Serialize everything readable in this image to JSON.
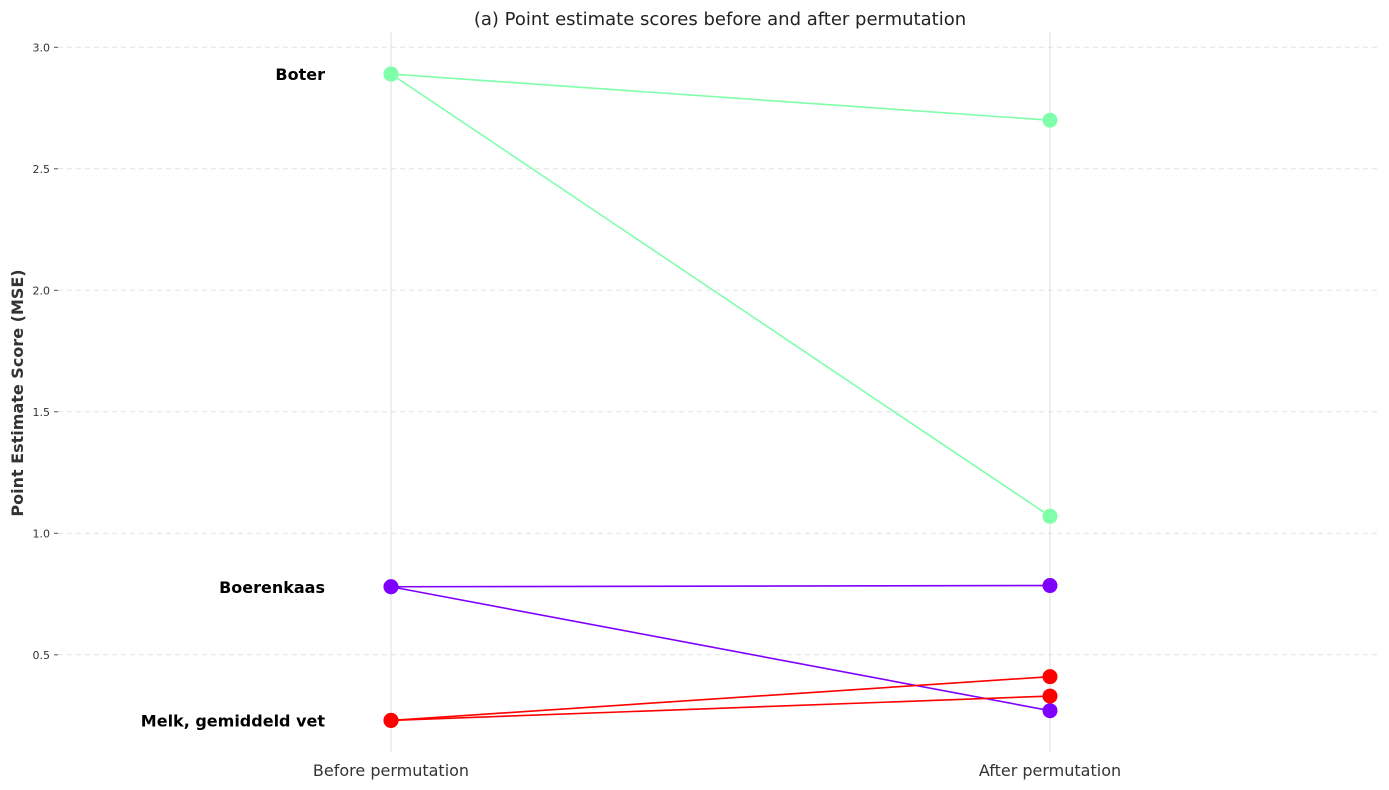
{
  "chart_data": {
    "type": "line",
    "title": "(a) Point estimate scores before and after permutation",
    "xlabel": "",
    "ylabel": "Point Estimate Score (MSE)",
    "categories": [
      "Before permutation",
      "After permutation"
    ],
    "yticks": [
      "0.5",
      "1.0",
      "1.5",
      "2.0",
      "2.5",
      "3.0"
    ],
    "ylim": [
      0.1,
      3.03
    ],
    "grid": "horizontal dashed",
    "legend": "none",
    "products": [
      {
        "label": "Boter",
        "color": "#7fffaa"
      },
      {
        "label": "Boerenkaas",
        "color": "#8000ff"
      },
      {
        "label": "Melk, gemiddeld vet",
        "color": "#ff0000"
      }
    ],
    "series": [
      {
        "product": 0,
        "values": [
          2.89,
          2.7
        ]
      },
      {
        "product": 0,
        "values": [
          2.89,
          1.07
        ]
      },
      {
        "product": 1,
        "values": [
          0.78,
          0.785
        ]
      },
      {
        "product": 1,
        "values": [
          0.78,
          0.27
        ]
      },
      {
        "product": 2,
        "values": [
          0.23,
          0.41
        ]
      },
      {
        "product": 2,
        "values": [
          0.23,
          0.33
        ]
      }
    ]
  }
}
